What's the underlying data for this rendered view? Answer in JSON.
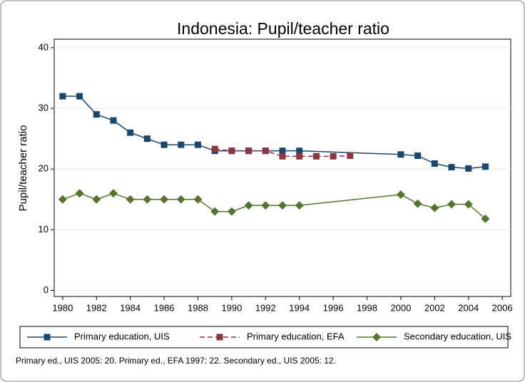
{
  "chart_data": {
    "type": "line",
    "title": "Indonesia: Pupil/teacher ratio",
    "y_label": "Pupil/teacher ratio",
    "note": "Primary ed., UIS 2005: 20. Primary ed., EFA 1997: 22. Secondary ed., UIS 2005: 12.",
    "xlim": [
      1979.5,
      2006.5
    ],
    "xticks": [
      1980,
      1982,
      1984,
      1986,
      1988,
      1990,
      1992,
      1994,
      1996,
      1998,
      2000,
      2002,
      2004,
      2006
    ],
    "ylim": [
      -1,
      41.4
    ],
    "yticks": [
      0,
      10,
      20,
      30,
      40
    ],
    "grid": true,
    "legend": "bottom",
    "series": [
      {
        "name": "Primary education, UIS",
        "color": "#1a476f",
        "marker": "square",
        "dash": false,
        "x": [
          1980,
          1981,
          1982,
          1983,
          1984,
          1985,
          1986,
          1987,
          1988,
          1989,
          1990,
          1991,
          1992,
          1993,
          1994,
          2000,
          2001,
          2002,
          2003,
          2004,
          2005
        ],
        "values": [
          32,
          32,
          29,
          28,
          26,
          25,
          24,
          24,
          24,
          23,
          23,
          23,
          23,
          23,
          23,
          22.4,
          22.2,
          20.9,
          20.3,
          20.1,
          20.4
        ]
      },
      {
        "name": "Primary education, EFA",
        "color": "#90353b",
        "marker": "square",
        "dash": true,
        "x": [
          1989,
          1990,
          1991,
          1992,
          1993,
          1994,
          1995,
          1996,
          1997
        ],
        "values": [
          23.3,
          23,
          23,
          23,
          22.1,
          22.1,
          22.1,
          22.1,
          22.2
        ]
      },
      {
        "name": "Secondary education, UIS",
        "color": "#55752f",
        "marker": "diamond",
        "dash": false,
        "x": [
          1980,
          1981,
          1982,
          1983,
          1984,
          1985,
          1986,
          1987,
          1988,
          1989,
          1990,
          1991,
          1992,
          1993,
          1994,
          2000,
          2001,
          2002,
          2003,
          2004,
          2005
        ],
        "values": [
          15,
          16,
          15,
          16,
          15,
          15,
          15,
          15,
          15,
          13,
          13,
          14,
          14,
          14,
          14,
          15.8,
          14.3,
          13.6,
          14.2,
          14.2,
          11.8
        ]
      }
    ]
  }
}
